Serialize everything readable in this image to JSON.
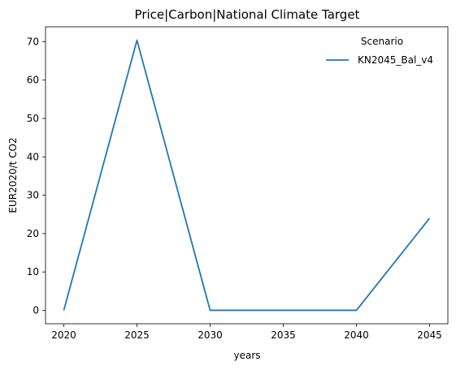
{
  "chart_data": {
    "type": "line",
    "title": "Price|Carbon|National Climate Target",
    "xlabel": "years",
    "ylabel": "EUR2020/t CO2",
    "x": [
      2020,
      2025,
      2030,
      2035,
      2040,
      2045
    ],
    "xticks": [
      "2020",
      "2025",
      "2030",
      "2035",
      "2040",
      "2045"
    ],
    "yticks": [
      "0",
      "10",
      "20",
      "30",
      "40",
      "50",
      "60",
      "70"
    ],
    "xlim": [
      2018.75,
      2046.25
    ],
    "ylim": [
      -3.5,
      73.9
    ],
    "grid": false,
    "legend": {
      "title": "Scenario",
      "placement": "top-right"
    },
    "series": [
      {
        "name": "KN2045_Bal_v4",
        "color": "#1f77b4",
        "points": [
          {
            "x": 2020,
            "y": 0
          },
          {
            "x": 2025,
            "y": 70.4
          },
          {
            "x": 2030,
            "y": 0
          },
          {
            "x": 2035,
            "y": 0
          },
          {
            "x": 2040,
            "y": 0
          },
          {
            "x": 2045,
            "y": 24
          }
        ]
      }
    ]
  }
}
